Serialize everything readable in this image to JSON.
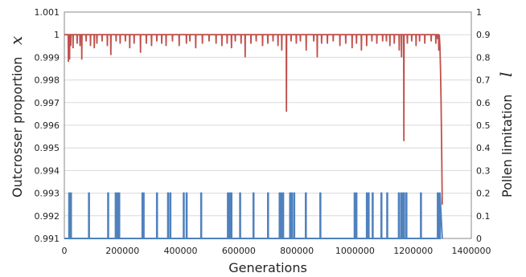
{
  "chart_data": {
    "type": "line",
    "xlabel": "Generations",
    "ylabel_left": "Outcrosser proportion",
    "ylabel_left_symbol": "x",
    "ylabel_right": "Pollen limitation",
    "ylabel_right_symbol": "l",
    "xlim": [
      0,
      1400000
    ],
    "ylim_left": [
      0.991,
      1.001
    ],
    "ylim_right": [
      0,
      1
    ],
    "x_ticks": [
      "0",
      "200000",
      "400000",
      "600000",
      "800000",
      "1000000",
      "1200000",
      "1400000"
    ],
    "y_left_ticks": [
      "0.991",
      "0.992",
      "0.993",
      "0.994",
      "0.995",
      "0.996",
      "0.997",
      "0.998",
      "0.999",
      "1",
      "1.001"
    ],
    "y_right_ticks": [
      "0",
      "0.1",
      "0.2",
      "0.3",
      "0.4",
      "0.5",
      "0.6",
      "0.7",
      "0.8",
      "0.9",
      "1"
    ],
    "grid": "horizontal",
    "series": [
      {
        "axis": "left",
        "color": "#c0504d",
        "baseline": 1.0,
        "dips": [
          [
            14000,
            0.9988
          ],
          [
            18000,
            0.9989
          ],
          [
            22000,
            0.9995
          ],
          [
            30000,
            0.9994
          ],
          [
            44000,
            0.9996
          ],
          [
            54000,
            0.9995
          ],
          [
            60000,
            0.9989
          ],
          [
            75000,
            0.9997
          ],
          [
            90000,
            0.9995
          ],
          [
            103000,
            0.9994
          ],
          [
            112000,
            0.9996
          ],
          [
            130000,
            0.9997
          ],
          [
            148000,
            0.9995
          ],
          [
            160000,
            0.9991
          ],
          [
            178000,
            0.9997
          ],
          [
            192000,
            0.9996
          ],
          [
            210000,
            0.9997
          ],
          [
            225000,
            0.9994
          ],
          [
            240000,
            0.9996
          ],
          [
            262000,
            0.9992
          ],
          [
            282000,
            0.9996
          ],
          [
            300000,
            0.9995
          ],
          [
            318000,
            0.9997
          ],
          [
            335000,
            0.9996
          ],
          [
            350000,
            0.9995
          ],
          [
            372000,
            0.9997
          ],
          [
            395000,
            0.9995
          ],
          [
            420000,
            0.9996
          ],
          [
            432000,
            0.9997
          ],
          [
            452000,
            0.9994
          ],
          [
            475000,
            0.9996
          ],
          [
            498000,
            0.9997
          ],
          [
            522000,
            0.9996
          ],
          [
            542000,
            0.9995
          ],
          [
            560000,
            0.9996
          ],
          [
            575000,
            0.9994
          ],
          [
            588000,
            0.9997
          ],
          [
            608000,
            0.9996
          ],
          [
            622000,
            0.999
          ],
          [
            642000,
            0.9996
          ],
          [
            660000,
            0.9997
          ],
          [
            682000,
            0.9995
          ],
          [
            700000,
            0.9996
          ],
          [
            718000,
            0.9997
          ],
          [
            735000,
            0.9995
          ],
          [
            748000,
            0.9993
          ],
          [
            764000,
            0.9966
          ],
          [
            780000,
            0.9997
          ],
          [
            798000,
            0.9996
          ],
          [
            812000,
            0.9997
          ],
          [
            832000,
            0.9993
          ],
          [
            858000,
            0.9997
          ],
          [
            870000,
            0.999
          ],
          [
            885000,
            0.9996
          ],
          [
            905000,
            0.9996
          ],
          [
            925000,
            0.9997
          ],
          [
            948000,
            0.9995
          ],
          [
            968000,
            0.9996
          ],
          [
            990000,
            0.9994
          ],
          [
            1005000,
            0.9996
          ],
          [
            1022000,
            0.9993
          ],
          [
            1040000,
            0.9995
          ],
          [
            1058000,
            0.9997
          ],
          [
            1075000,
            0.9996
          ],
          [
            1095000,
            0.9997
          ],
          [
            1108000,
            0.9997
          ],
          [
            1120000,
            0.9995
          ],
          [
            1135000,
            0.9996
          ],
          [
            1152000,
            0.9993
          ],
          [
            1160000,
            0.999
          ],
          [
            1168000,
            0.9953
          ],
          [
            1180000,
            0.9996
          ],
          [
            1195000,
            0.9997
          ],
          [
            1210000,
            0.9995
          ],
          [
            1222000,
            0.9997
          ],
          [
            1240000,
            0.9996
          ],
          [
            1262000,
            0.9997
          ],
          [
            1278000,
            0.9996
          ],
          [
            1284000,
            0.9998
          ],
          [
            1288000,
            0.9993
          ]
        ],
        "tail": [
          [
            1290000,
            0.99995
          ],
          [
            1292000,
            0.9995
          ],
          [
            1294000,
            0.9985
          ],
          [
            1296000,
            0.997
          ],
          [
            1298000,
            0.995
          ],
          [
            1300000,
            0.9925
          ]
        ]
      },
      {
        "axis": "right",
        "color": "#4f81bd",
        "baseline": 0,
        "spike_value": 0.2,
        "spikes": [
          16000,
          22000,
          84000,
          150000,
          176000,
          182000,
          188000,
          268000,
          272000,
          318000,
          356000,
          364000,
          410000,
          420000,
          470000,
          562000,
          568000,
          574000,
          604000,
          650000,
          700000,
          740000,
          746000,
          752000,
          776000,
          782000,
          790000,
          830000,
          880000,
          998000,
          1004000,
          1040000,
          1046000,
          1060000,
          1090000,
          1110000,
          1150000,
          1158000,
          1164000,
          1168000,
          1176000,
          1226000,
          1284000,
          1290000
        ],
        "tail": [
          [
            1296000,
            0.1
          ],
          [
            1298000,
            0.05
          ],
          [
            1300000,
            0
          ]
        ]
      }
    ]
  }
}
